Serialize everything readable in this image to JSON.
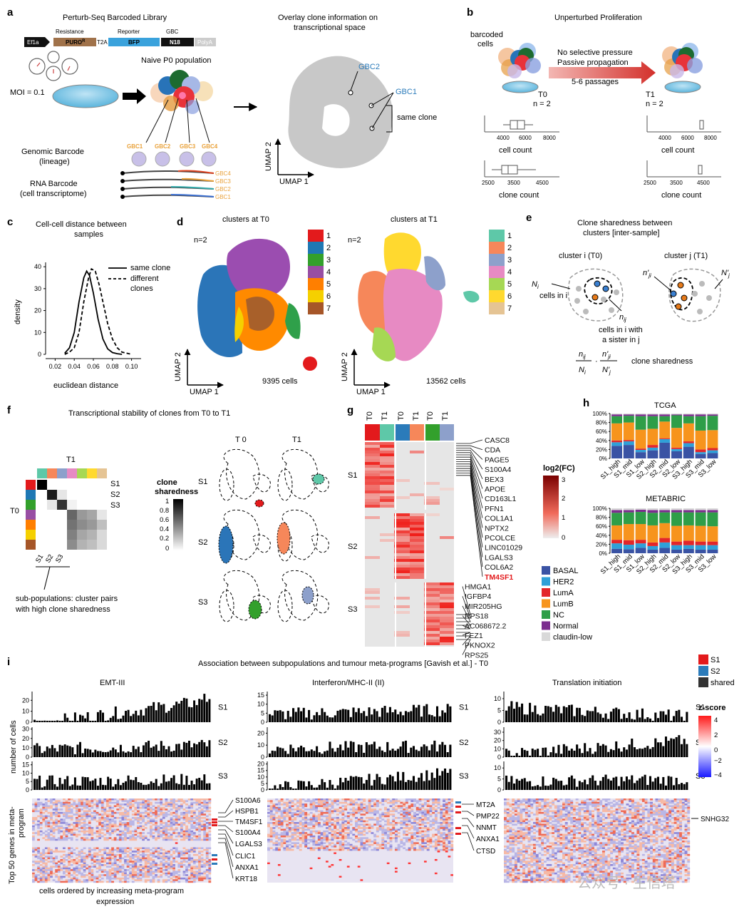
{
  "colors": {
    "t0": [
      "#e31a1c",
      "#1f78b4",
      "#33a02c",
      "#984ea3",
      "#ff7f00",
      "#f5d000",
      "#a65628"
    ],
    "t1": [
      "#5ec8a8",
      "#f6875a",
      "#8da0cb",
      "#e78ac3",
      "#a6d854",
      "#ffd92f",
      "#e5c494"
    ],
    "subtype": [
      "#3a53a4",
      "#2fa0d8",
      "#e3262a",
      "#f7941d",
      "#2e9e48",
      "#7b2d8e",
      "#d9d9d9"
    ],
    "s1": "#e31a1c",
    "s2": "#2b7bba",
    "shared": "#333333"
  },
  "panels": {
    "a": "a",
    "b": "b",
    "c": "c",
    "d": "d",
    "e": "e",
    "f": "f",
    "g": "g",
    "h": "h",
    "i": "i"
  },
  "a": {
    "title": "Perturb-Seq Barcoded Library",
    "construct": {
      "ef1a": "Ef1a",
      "resistance": "Resistance",
      "puro": "PURO",
      "puro_sup": "R",
      "t2a": "T2A",
      "reporter": "Reporter",
      "bfp": "BFP",
      "gbc": "GBC",
      "n18": "N18",
      "polya": "PolyA"
    },
    "moi": "MOI = 0.1",
    "naive": "Naive P0 population",
    "gbcs": [
      "GBC1",
      "GBC2",
      "GBC3",
      "GBC4"
    ],
    "genomic": [
      "Genomic Barcode",
      "(lineage)"
    ],
    "rna": [
      "RNA Barcode",
      "(cell transcriptome)"
    ],
    "transcripts": [
      "GBC4",
      "GBC3",
      "GBC2",
      "GBC1"
    ],
    "overlay": [
      "Overlay clone information on",
      "transcriptional space"
    ],
    "umap_gbc2": "GBC2",
    "umap_gbc1": "GBC1",
    "same_clone": "same clone",
    "umap2": "UMAP 2",
    "umap1": "UMAP 1"
  },
  "b": {
    "title": "Unperturbed Proliferation",
    "barcoded": [
      "barcoded",
      "cells"
    ],
    "arrow": [
      "No selective pressure",
      "Passive propagation"
    ],
    "passages": "5-6 passages",
    "t0": "T0",
    "t0n": "n = 2",
    "t1": "T1",
    "t1n": "n = 2",
    "cell_count": "cell count",
    "clone_count": "clone count",
    "cell_ticks": [
      "4000",
      "6000",
      "8000"
    ],
    "clone_ticks": [
      "2500",
      "3500",
      "4500"
    ]
  },
  "c": {
    "title": [
      "Cell-cell distance between",
      "samples"
    ],
    "legend_same": "same clone",
    "legend_diff": [
      "different",
      "clones"
    ],
    "xlabel": "euclidean distance",
    "ylabel": "density",
    "xticks": [
      "0.02",
      "0.04",
      "0.06",
      "0.08",
      "0.10"
    ],
    "yticks": [
      "0",
      "10",
      "20",
      "30",
      "40"
    ]
  },
  "d": {
    "t0_title": "clusters at T0",
    "t1_title": "clusters at T1",
    "n": "n=2",
    "t0_cells": "9395 cells",
    "t1_cells": "13562 cells",
    "legend": [
      "1",
      "2",
      "3",
      "4",
      "5",
      "6",
      "7"
    ],
    "umap2": "UMAP 2",
    "umap1": "UMAP 1"
  },
  "e": {
    "title": [
      "Clone sharedness between",
      "clusters [inter-sample]"
    ],
    "cluster_i": "cluster i (T0)",
    "cluster_j": "cluster j (T1)",
    "ni": "N",
    "ni_sub": "i",
    "cells_in_i": "cells in i",
    "nij": "n",
    "nij_sub": "ij",
    "nji": "n'",
    "nji_sub": "ji",
    "nj": "N'",
    "nj_sub": "j",
    "sister": [
      "cells in i with",
      "a sister in j"
    ],
    "formula_label": "clone sharedness"
  },
  "f": {
    "title": "Transcriptional stability of clones from T0 to T1",
    "t1": "T1",
    "t0": "T0",
    "rows": [
      "S1",
      "S2",
      "S3"
    ],
    "legend_title": [
      "clone",
      "sharedness"
    ],
    "legend_ticks": [
      "1",
      "0.8",
      "0.6",
      "0.4",
      "0.2",
      "0"
    ],
    "caption": [
      "sub-populations: cluster pairs",
      "with high clone sharedness"
    ],
    "col_t0": "T 0",
    "col_t1": "T1"
  },
  "g": {
    "cols": [
      "T0",
      "T1",
      "T0",
      "T1",
      "T0",
      "T1"
    ],
    "rows": [
      "S1",
      "S2",
      "S3"
    ],
    "genes": [
      "CASC8",
      "CDA",
      "PAGE5",
      "S100A4",
      "BEX3",
      "APOE",
      "CD163L1",
      "PFN1",
      "COL1A1",
      "NPTX2",
      "PCOLCE",
      "LINC01029",
      "LGALS3",
      "COL6A2",
      "TM4SF1",
      "HMGA1",
      "IGFBP4",
      "MIR205HG",
      "RPS18",
      "AC068672.2",
      "FEZ1",
      "PKNOX2",
      "RPS25"
    ],
    "highlight_gene": "TM4SF1",
    "legend_title": "log2(FC)",
    "legend_ticks": [
      "3",
      "2",
      "1",
      "0"
    ]
  },
  "h": {
    "tcga": "TCGA",
    "metabric": "METABRIC",
    "yticks": [
      "100%",
      "80%",
      "60%",
      "40%",
      "20%",
      "0%"
    ],
    "categories": [
      "S1_high",
      "S1_mid",
      "S1_low",
      "S2_high",
      "S2_mid",
      "S2_low",
      "S3_high",
      "S3_mid",
      "S3_low"
    ],
    "subtypes": [
      "BASAL",
      "HER2",
      "LumA",
      "LumB",
      "NC",
      "Normal",
      "claudin-low"
    ]
  },
  "chart_data": [
    {
      "type": "line",
      "title": "Cell-cell distance between samples",
      "xlabel": "euclidean distance",
      "ylabel": "density",
      "xlim": [
        0.01,
        0.11
      ],
      "ylim": [
        0,
        42
      ],
      "series": [
        {
          "name": "same clone",
          "x": [
            0.03,
            0.035,
            0.04,
            0.045,
            0.05,
            0.053,
            0.056,
            0.06,
            0.065,
            0.07,
            0.075,
            0.08,
            0.085,
            0.09
          ],
          "values": [
            0.5,
            3,
            10,
            24,
            35,
            38,
            36,
            28,
            16,
            7,
            2.5,
            0.8,
            0.3,
            0
          ]
        },
        {
          "name": "different clones",
          "x": [
            0.03,
            0.035,
            0.04,
            0.045,
            0.05,
            0.055,
            0.058,
            0.062,
            0.066,
            0.07,
            0.075,
            0.08,
            0.085,
            0.09,
            0.1
          ],
          "values": [
            0,
            1,
            3,
            10,
            24,
            35,
            39,
            38,
            32,
            24,
            14,
            7,
            3,
            1,
            0
          ]
        }
      ]
    },
    {
      "type": "bar",
      "stacked": true,
      "title": "TCGA",
      "categories": [
        "S1_high",
        "S1_mid",
        "S1_low",
        "S2_high",
        "S2_mid",
        "S2_low",
        "S3_high",
        "S3_mid",
        "S3_low"
      ],
      "series": [
        {
          "name": "BASAL",
          "values": [
            28,
            30,
            14,
            18,
            35,
            16,
            26,
            10,
            12
          ]
        },
        {
          "name": "HER2",
          "values": [
            8,
            8,
            5,
            6,
            8,
            5,
            8,
            4,
            6
          ]
        },
        {
          "name": "LumA",
          "values": [
            4,
            3,
            3,
            6,
            2,
            3,
            4,
            6,
            5
          ]
        },
        {
          "name": "LumB",
          "values": [
            38,
            39,
            42,
            36,
            37,
            44,
            40,
            42,
            40
          ]
        },
        {
          "name": "NC",
          "values": [
            16,
            15,
            30,
            28,
            12,
            28,
            16,
            32,
            32
          ]
        },
        {
          "name": "Normal",
          "values": [
            4,
            3,
            4,
            4,
            4,
            2,
            4,
            4,
            3
          ]
        },
        {
          "name": "claudin-low",
          "values": [
            2,
            2,
            2,
            2,
            2,
            2,
            2,
            2,
            2
          ]
        }
      ]
    },
    {
      "type": "bar",
      "stacked": true,
      "title": "METABRIC",
      "categories": [
        "S1_high",
        "S1_mid",
        "S1_low",
        "S2_high",
        "S2_mid",
        "S2_low",
        "S3_high",
        "S3_mid",
        "S3_low"
      ],
      "series": [
        {
          "name": "BASAL",
          "values": [
            10,
            9,
            12,
            8,
            12,
            8,
            10,
            8,
            8
          ]
        },
        {
          "name": "HER2",
          "values": [
            12,
            10,
            10,
            8,
            12,
            10,
            8,
            10,
            10
          ]
        },
        {
          "name": "LumA",
          "values": [
            8,
            10,
            8,
            8,
            10,
            8,
            10,
            8,
            8
          ]
        },
        {
          "name": "LumB",
          "values": [
            32,
            36,
            35,
            38,
            33,
            35,
            34,
            35,
            34
          ]
        },
        {
          "name": "NC",
          "values": [
            28,
            26,
            27,
            28,
            24,
            30,
            29,
            30,
            31
          ]
        },
        {
          "name": "Normal",
          "values": [
            6,
            5,
            5,
            6,
            5,
            5,
            5,
            5,
            5
          ]
        },
        {
          "name": "claudin-low",
          "values": [
            4,
            4,
            3,
            4,
            4,
            4,
            4,
            4,
            4
          ]
        }
      ]
    }
  ],
  "i": {
    "title": "Association between subpopulations and tumour meta-programs [Gavish et al.] - T0",
    "programs": [
      "EMT-III",
      "Interferon/MHC-II (II)",
      "Translation initiation"
    ],
    "rows": [
      "S1",
      "S2",
      "S3"
    ],
    "ylabel": "number of cells",
    "heat_ylabel": [
      "Top 50 genes in meta-",
      "program"
    ],
    "xlabel": [
      "cells ordered by increasing meta-program",
      "expression"
    ],
    "emt_yticks": [
      [
        "20",
        "10",
        "0"
      ],
      [
        "30",
        "20",
        "10",
        "0"
      ],
      [
        "15",
        "10",
        "5",
        "0"
      ]
    ],
    "ifn_yticks": [
      [
        "15",
        "10",
        "5",
        "0"
      ],
      [
        "20",
        "10",
        "0"
      ],
      [
        "20",
        "15",
        "10",
        "5",
        "0"
      ]
    ],
    "ti_yticks": [
      [
        "10",
        "5",
        "0"
      ],
      [
        "30",
        "20",
        "10",
        "0"
      ],
      [
        "10",
        "5",
        "0"
      ]
    ],
    "emt_genes": [
      "S100A6",
      "HSPB1",
      "TM4SF1",
      "S100A4",
      "LGALS3",
      "CLIC1",
      "ANXA1",
      "KRT18"
    ],
    "ifn_genes": [
      "MT2A",
      "PMP22",
      "NNMT",
      "ANXA1",
      "CTSD"
    ],
    "ti_genes": [
      "SNHG32"
    ],
    "legend": [
      "S1",
      "S2",
      "shared"
    ],
    "zscore_title": "z-score",
    "zscore_ticks": [
      "4",
      "2",
      "0",
      "−2",
      "−4"
    ]
  },
  "watermark": "公众号 · 生信塔"
}
